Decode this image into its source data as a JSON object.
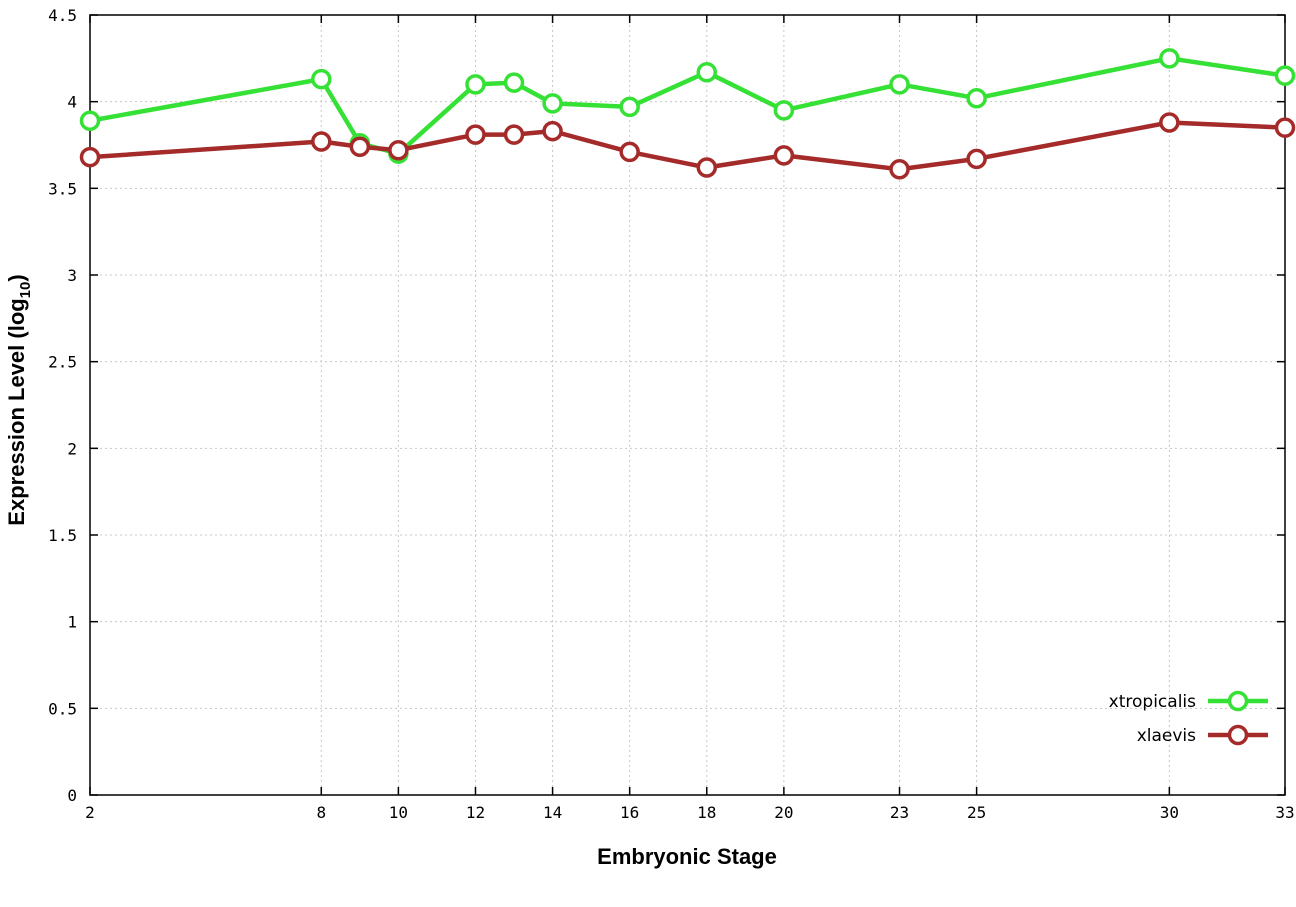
{
  "chart_data": {
    "type": "line",
    "title": "",
    "xlabel": "Embryonic Stage",
    "ylabel": "Expression Level (log10)",
    "ylabel_parts": {
      "text": "Expression Level (log",
      "sub": "10",
      "suffix": ")"
    },
    "xlim": [
      2,
      33
    ],
    "ylim": [
      0,
      4.5
    ],
    "grid": true,
    "legend_position": "bottom-right",
    "xticks": [
      "2",
      "8",
      "10",
      "12",
      "14",
      "16",
      "18",
      "20",
      "23",
      "25",
      "30",
      "33"
    ],
    "yticks": [
      "0",
      "0.5",
      "1",
      "1.5",
      "2",
      "2.5",
      "3",
      "3.5",
      "4",
      "4.5"
    ],
    "x": [
      2,
      8,
      9,
      10,
      12,
      13,
      14,
      16,
      18,
      20,
      23,
      25,
      30,
      33
    ],
    "series": [
      {
        "name": "xtropicalis",
        "color": "#35e135",
        "values": [
          3.89,
          4.13,
          3.76,
          3.7,
          4.1,
          4.11,
          3.99,
          3.97,
          4.17,
          3.95,
          4.1,
          4.02,
          4.25,
          4.15
        ]
      },
      {
        "name": "xlaevis",
        "color": "#a52a2a",
        "values": [
          3.68,
          3.77,
          3.74,
          3.72,
          3.81,
          3.81,
          3.83,
          3.71,
          3.62,
          3.69,
          3.61,
          3.67,
          3.88,
          3.85
        ]
      }
    ],
    "colors": {
      "grid": "#c8c8c8",
      "border": "#000000",
      "marker_fill": "#ffffff"
    }
  }
}
